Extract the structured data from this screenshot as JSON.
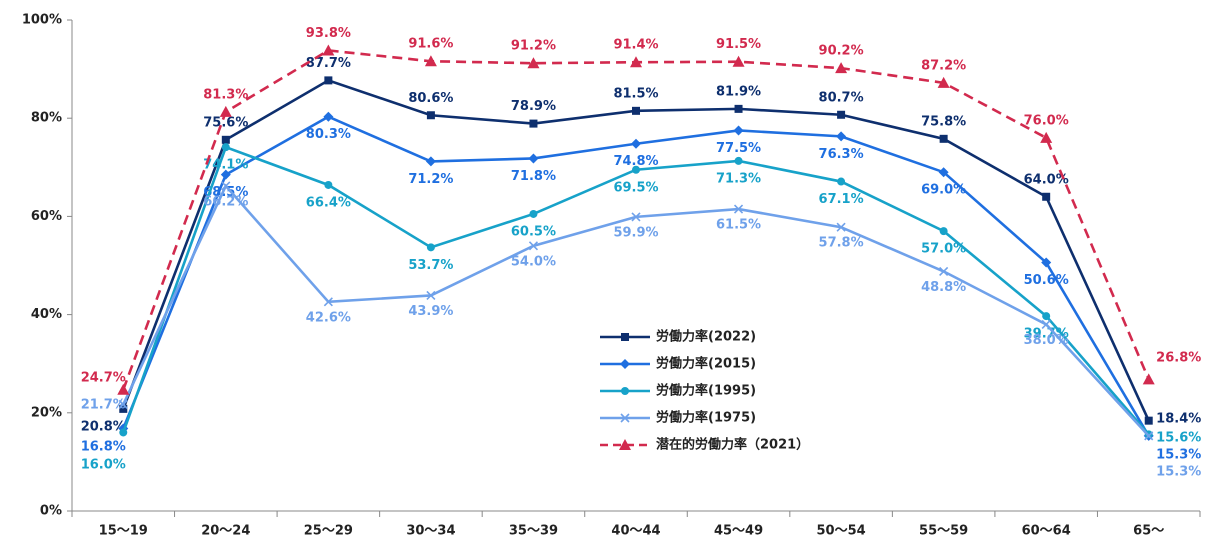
{
  "chart_data": {
    "type": "line",
    "categories": [
      "15〜19",
      "20〜24",
      "25〜29",
      "30〜34",
      "35〜39",
      "40〜44",
      "45〜49",
      "50〜54",
      "55〜59",
      "60〜64",
      "65〜"
    ],
    "ylim": [
      0,
      100
    ],
    "yticks": [
      {
        "value": 0,
        "label": "0%"
      },
      {
        "value": 20,
        "label": "20%"
      },
      {
        "value": 40,
        "label": "40%"
      },
      {
        "value": 60,
        "label": "60%"
      },
      {
        "value": 80,
        "label": "80%"
      },
      {
        "value": 100,
        "label": "100%"
      }
    ],
    "grid": false,
    "series": [
      {
        "name": "労働力率(2022)",
        "color": "#0e2f6e",
        "marker": "square",
        "linestyle": "solid",
        "values": [
          20.8,
          75.6,
          87.7,
          80.6,
          78.9,
          81.5,
          81.9,
          80.7,
          75.8,
          64.0,
          18.4
        ],
        "value_labels": [
          "20.8%",
          "75.6%",
          "87.7%",
          "80.6%",
          "78.9%",
          "81.5%",
          "81.9%",
          "80.7%",
          "75.8%",
          "64.0%",
          "18.4%"
        ]
      },
      {
        "name": "労働力率(2015)",
        "color": "#1f6fe0",
        "marker": "diamond",
        "linestyle": "solid",
        "values": [
          16.8,
          68.5,
          80.3,
          71.2,
          71.8,
          74.8,
          77.5,
          76.3,
          69.0,
          50.6,
          15.3
        ],
        "value_labels": [
          "16.8%",
          "68.5%",
          "80.3%",
          "71.2%",
          "71.8%",
          "74.8%",
          "77.5%",
          "76.3%",
          "69.0%",
          "50.6%",
          "15.3%"
        ]
      },
      {
        "name": "労働力率(1995)",
        "color": "#17a2c9",
        "marker": "circle",
        "linestyle": "solid",
        "values": [
          16.0,
          74.1,
          66.4,
          53.7,
          60.5,
          69.5,
          71.3,
          67.1,
          57.0,
          39.7,
          15.6
        ],
        "value_labels": [
          "16.0%",
          "74.1%",
          "66.4%",
          "53.7%",
          "60.5%",
          "69.5%",
          "71.3%",
          "67.1%",
          "57.0%",
          "39.7%",
          "15.6%"
        ]
      },
      {
        "name": "労働力率(1975)",
        "color": "#6fa1ea",
        "marker": "x",
        "linestyle": "solid",
        "values": [
          21.7,
          66.2,
          42.6,
          43.9,
          54.0,
          59.9,
          61.5,
          57.8,
          48.8,
          38.0,
          15.3
        ],
        "value_labels": [
          "21.7%",
          "66.2%",
          "42.6%",
          "43.9%",
          "54.0%",
          "59.9%",
          "61.5%",
          "57.8%",
          "48.8%",
          "38.0%",
          "15.3%"
        ]
      },
      {
        "name": "潜在的労働力率（2021）",
        "color": "#d22a4e",
        "marker": "triangle",
        "linestyle": "dashed",
        "values": [
          24.7,
          81.3,
          93.8,
          91.6,
          91.2,
          91.4,
          91.5,
          90.2,
          87.2,
          76.0,
          26.8
        ],
        "value_labels": [
          "24.7%",
          "81.3%",
          "93.8%",
          "91.6%",
          "91.2%",
          "91.4%",
          "91.5%",
          "90.2%",
          "87.2%",
          "76.0%",
          "26.8%"
        ]
      }
    ]
  }
}
